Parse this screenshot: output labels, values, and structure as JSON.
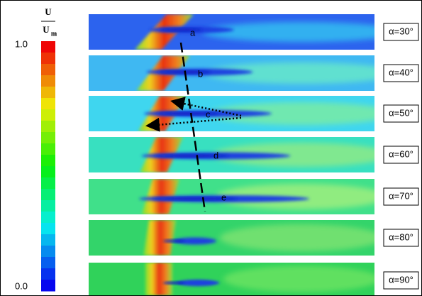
{
  "colorbar": {
    "numerator": "U",
    "denominator": "U",
    "subscript": "m",
    "max_label": "1.0",
    "min_label": "0.0"
  },
  "panels": [
    {
      "letter": "a",
      "alpha_label": "α=30°"
    },
    {
      "letter": "b",
      "alpha_label": "α=40°"
    },
    {
      "letter": "c",
      "alpha_label": "α=50°"
    },
    {
      "letter": "d",
      "alpha_label": "α=60°"
    },
    {
      "letter": "e",
      "alpha_label": "α=70°"
    },
    {
      "alpha_label": "α=80°"
    },
    {
      "alpha_label": "α=90°"
    }
  ]
}
